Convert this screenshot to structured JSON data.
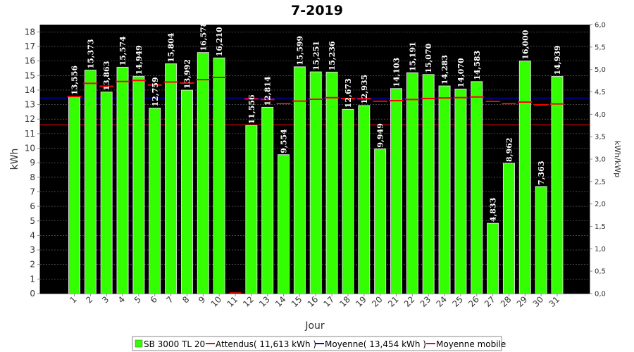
{
  "chart_data": {
    "type": "bar",
    "title": "7-2019",
    "xlabel": "Jour",
    "ylabel": "kWh",
    "y2label": "kWh/kWp",
    "ylim": [
      0,
      18.5
    ],
    "y2lim": [
      0,
      6.0
    ],
    "categories": [
      "1",
      "2",
      "3",
      "4",
      "5",
      "6",
      "7",
      "8",
      "9",
      "10",
      "11",
      "12",
      "13",
      "14",
      "15",
      "16",
      "17",
      "18",
      "19",
      "20",
      "21",
      "22",
      "23",
      "24",
      "25",
      "26",
      "27",
      "28",
      "29",
      "30",
      "31"
    ],
    "series": [
      {
        "name": "SB 3000 TL 20",
        "color": "#33ff00",
        "values": [
          13.556,
          15.373,
          13.863,
          15.574,
          14.949,
          12.759,
          15.804,
          13.992,
          16.578,
          16.21,
          0,
          11.556,
          12.814,
          9.554,
          15.599,
          15.251,
          15.236,
          12.673,
          12.935,
          9.949,
          14.103,
          15.191,
          15.07,
          14.283,
          14.07,
          14.583,
          4.833,
          8.962,
          16.0,
          7.363,
          14.939
        ],
        "labels": [
          "13,556",
          "15,373",
          "13,863",
          "15,574",
          "14,949",
          "12,759",
          "15,804",
          "13,992",
          "16,578",
          "16,210",
          "",
          "11,556",
          "12,814",
          "9,554",
          "15,599",
          "15,251",
          "15,236",
          "12,673",
          "12,935",
          "9,949",
          "14,103",
          "15,191",
          "15,070",
          "14,283",
          "14,070",
          "14,583",
          "4,833",
          "8,962",
          "16,000",
          "7,363",
          "14,939"
        ]
      }
    ],
    "attendus": {
      "legend": "Attendus( 11,613 kWh )",
      "value": 11.613,
      "color": "#ff0000"
    },
    "moyenne": {
      "legend": "Moyenne( 13,454 kWh )",
      "value": 13.454,
      "color": "#0000ff"
    },
    "moyenne_mobile": {
      "legend": "Moyenne mobile",
      "color": "#ff0000",
      "values": [
        13.556,
        14.465,
        14.264,
        14.592,
        14.663,
        14.345,
        14.553,
        14.483,
        14.716,
        14.866,
        0,
        13.389,
        13.346,
        13.075,
        13.242,
        13.368,
        13.475,
        13.423,
        13.394,
        13.226,
        13.268,
        13.35,
        13.421,
        13.46,
        13.484,
        13.526,
        13.223,
        13.071,
        13.175,
        12.981,
        13.043
      ]
    },
    "y_ticks": [
      0,
      1,
      2,
      3,
      4,
      5,
      6,
      7,
      8,
      9,
      10,
      11,
      12,
      13,
      14,
      15,
      16,
      17,
      18
    ],
    "y2_ticks": [
      "0,0",
      "0,5",
      "1,0",
      "1,5",
      "2,0",
      "2,5",
      "3,0",
      "3,5",
      "4,0",
      "4,5",
      "5,0",
      "5,5",
      "6,0"
    ],
    "grid": true,
    "legend_position": "bottom"
  }
}
